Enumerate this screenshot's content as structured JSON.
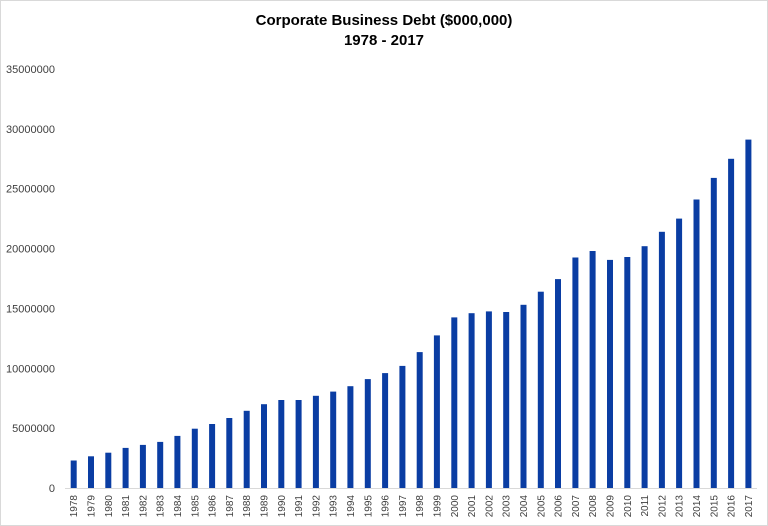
{
  "chart_data": {
    "type": "bar",
    "title": "Corporate Business Debt ($000,000)",
    "subtitle": "1978 - 2017",
    "xlabel": "",
    "ylabel": "",
    "ylim": [
      0,
      35000000
    ],
    "yticks": [
      "0",
      "5000000",
      "10000000",
      "15000000",
      "20000000",
      "25000000",
      "30000000",
      "35000000"
    ],
    "grid": false,
    "legend": "none",
    "bar_color": "#0a3da3",
    "categories": [
      "1978",
      "1979",
      "1980",
      "1981",
      "1982",
      "1983",
      "1984",
      "1985",
      "1986",
      "1987",
      "1988",
      "1989",
      "1990",
      "1991",
      "1992",
      "1993",
      "1994",
      "1995",
      "1996",
      "1997",
      "1998",
      "1999",
      "2000",
      "2001",
      "2002",
      "2003",
      "2004",
      "2005",
      "2006",
      "2007",
      "2008",
      "2009",
      "2010",
      "2011",
      "2012",
      "2013",
      "2014",
      "2015",
      "2016",
      "2017"
    ],
    "values": [
      2300000,
      2650000,
      2950000,
      3350000,
      3600000,
      3850000,
      4350000,
      4950000,
      5350000,
      5850000,
      6450000,
      7000000,
      7350000,
      7350000,
      7700000,
      8050000,
      8500000,
      9100000,
      9600000,
      10200000,
      11350000,
      12750000,
      14250000,
      14600000,
      14750000,
      14700000,
      15300000,
      16400000,
      17450000,
      19250000,
      19800000,
      19050000,
      19300000,
      20200000,
      21400000,
      22500000,
      24100000,
      25900000,
      27500000,
      29100000
    ]
  }
}
